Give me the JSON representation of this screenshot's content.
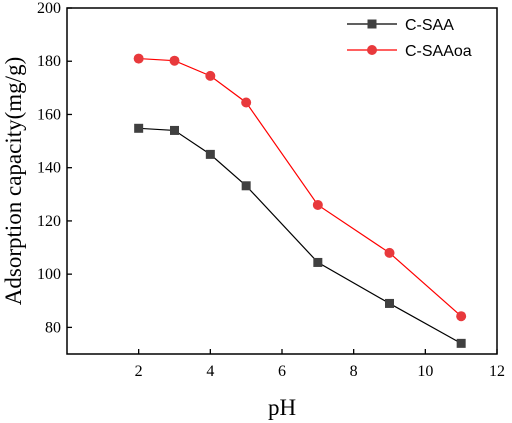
{
  "chart_data": {
    "type": "line",
    "xlabel": "pH",
    "ylabel": "Adsorption capacity(mg/g)",
    "xlim": [
      0,
      12
    ],
    "ylim": [
      70,
      200
    ],
    "xticks": [
      2,
      4,
      6,
      8,
      10,
      12
    ],
    "yticks": [
      80,
      100,
      120,
      140,
      160,
      180,
      200
    ],
    "grid": false,
    "legend_position": "top-right",
    "series": [
      {
        "name": "C-SAA",
        "color": "#000000",
        "marker": "square",
        "marker_color": "#404040",
        "x": [
          2,
          3,
          4,
          5,
          7,
          9,
          11
        ],
        "y": [
          154.8,
          154.0,
          145.0,
          133.2,
          104.4,
          89.0,
          74.0
        ]
      },
      {
        "name": "C-SAAoa",
        "color": "#ff0000",
        "marker": "circle",
        "marker_color": "#e8393c",
        "x": [
          2,
          3,
          4,
          5,
          7,
          9,
          11
        ],
        "y": [
          181.0,
          180.2,
          174.5,
          164.5,
          126.0,
          108.0,
          84.2
        ]
      }
    ]
  }
}
